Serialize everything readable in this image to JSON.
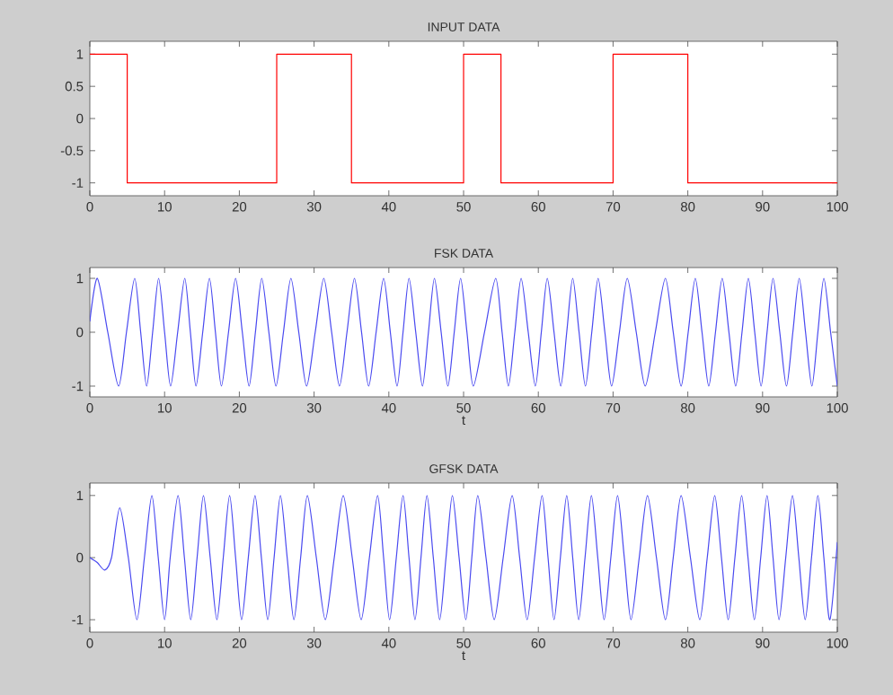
{
  "chart_data": [
    {
      "type": "step",
      "title": "INPUT DATA",
      "color": "#ff0000",
      "x": [
        0,
        5,
        25,
        35,
        50,
        55,
        70,
        80,
        100
      ],
      "values": [
        1,
        -1,
        1,
        -1,
        1,
        -1,
        1,
        -1,
        -1
      ],
      "xlim": [
        0,
        100
      ],
      "xticks": [
        0,
        10,
        20,
        30,
        40,
        50,
        60,
        70,
        80,
        90,
        100
      ],
      "ylim": [
        -1.2,
        1.2
      ],
      "yticks": [
        -1,
        -0.5,
        0,
        0.5,
        1
      ]
    },
    {
      "type": "line",
      "title": "FSK DATA",
      "xlabel": "t",
      "color": "#4a4af0",
      "x": [
        0,
        1.0,
        2.4,
        3.85,
        4.9,
        6.0,
        6.8,
        7.6,
        8.4,
        9.2,
        10.0,
        10.8,
        11.75,
        12.7,
        13.45,
        14.2,
        15.1,
        16.0,
        16.8,
        17.6,
        18.55,
        19.5,
        20.4,
        21.3,
        22.15,
        23.0,
        23.95,
        24.9,
        25.9,
        26.9,
        27.95,
        29.0,
        30.15,
        31.3,
        32.35,
        33.4,
        34.4,
        35.4,
        36.35,
        37.3,
        38.3,
        39.3,
        40.2,
        41.1,
        41.9,
        42.7,
        43.6,
        44.5,
        45.3,
        46.1,
        47.0,
        47.9,
        48.75,
        49.6,
        50.45,
        51.3,
        52.8,
        54.3,
        55.15,
        56.0,
        56.85,
        57.7,
        58.65,
        59.6,
        60.4,
        61.2,
        62.1,
        63.0,
        63.8,
        64.6,
        65.45,
        66.3,
        67.15,
        68.0,
        68.9,
        69.8,
        70.85,
        71.9,
        73.1,
        74.3,
        75.65,
        77.0,
        78.05,
        79.1,
        80.05,
        81.0,
        81.9,
        82.8,
        83.7,
        84.6,
        85.5,
        86.4,
        87.25,
        88.1,
        88.95,
        89.8,
        90.6,
        91.4,
        92.3,
        93.2,
        94.05,
        94.9,
        95.75,
        96.6,
        97.4,
        98.2,
        99.1,
        100
      ],
      "values": [
        0.2,
        1,
        0,
        -1,
        0,
        1,
        0,
        -1,
        0,
        1,
        0,
        -1,
        0,
        1,
        0,
        -1,
        0,
        1,
        0,
        -1,
        0,
        1,
        0,
        -1,
        0,
        1,
        0,
        -1,
        0,
        1,
        0,
        -1,
        0,
        1,
        0,
        -1,
        0,
        1,
        0,
        -1,
        0,
        1,
        0,
        -1,
        0,
        1,
        0,
        -1,
        0,
        1,
        0,
        -1,
        0,
        1,
        0,
        -1,
        0,
        1,
        0,
        -1,
        0,
        1,
        0,
        -1,
        0,
        1,
        0,
        -1,
        0,
        1,
        0,
        -1,
        0,
        1,
        0,
        -1,
        0,
        1,
        0,
        -1,
        0,
        1,
        0,
        -1,
        0,
        1,
        0,
        -1,
        0,
        1,
        0,
        -1,
        0,
        1,
        0,
        -1,
        0,
        1,
        0,
        -1,
        0,
        1,
        0,
        -1,
        0,
        1,
        0,
        -1
      ],
      "xlim": [
        0,
        100
      ],
      "xticks": [
        0,
        10,
        20,
        30,
        40,
        50,
        60,
        70,
        80,
        90,
        100
      ],
      "ylim": [
        -1.2,
        1.2
      ],
      "yticks": [
        -1,
        0,
        1
      ]
    },
    {
      "type": "line",
      "title": "GFSK DATA",
      "xlabel": "t",
      "color": "#4a4af0",
      "x": [
        0,
        1.0,
        2.0,
        2.9,
        4.0,
        5.15,
        6.3,
        7.3,
        8.3,
        9.15,
        10.0,
        10.75,
        11.8,
        12.65,
        13.5,
        14.35,
        15.2,
        16.1,
        17.0,
        17.85,
        18.7,
        19.5,
        20.3,
        21.2,
        22.1,
        22.95,
        23.8,
        24.65,
        25.5,
        26.4,
        27.3,
        28.2,
        29.1,
        30.3,
        31.5,
        32.7,
        33.9,
        35.1,
        36.3,
        37.4,
        38.5,
        39.3,
        40.1,
        41.0,
        41.9,
        42.7,
        43.5,
        44.3,
        45.1,
        45.95,
        46.8,
        47.65,
        48.5,
        49.4,
        50.3,
        51.1,
        51.9,
        53.0,
        54.1,
        55.3,
        56.5,
        57.5,
        58.5,
        59.5,
        60.5,
        61.3,
        62.1,
        62.95,
        63.8,
        64.6,
        65.4,
        66.25,
        67.1,
        67.95,
        68.8,
        69.7,
        70.6,
        71.5,
        72.4,
        73.5,
        74.6,
        75.8,
        77.0,
        78.05,
        79.1,
        80.35,
        81.6,
        82.6,
        83.6,
        84.5,
        85.4,
        86.3,
        87.2,
        88.05,
        88.9,
        89.75,
        90.6,
        91.4,
        92.2,
        93.1,
        94.0,
        94.85,
        95.7,
        96.55,
        97.4,
        98.2,
        99.0,
        100
      ],
      "values": [
        0,
        -0.08,
        -0.2,
        0,
        0.8,
        0,
        -1,
        0,
        1,
        0,
        -1,
        0,
        1,
        0,
        -1,
        0,
        1,
        0,
        -1,
        0,
        1,
        0,
        -1,
        0,
        1,
        0,
        -1,
        0,
        1,
        0,
        -1,
        0,
        1,
        0,
        -1,
        0,
        1,
        0,
        -1,
        0,
        1,
        0,
        -1,
        0,
        1,
        0,
        -1,
        0,
        1,
        0,
        -1,
        0,
        1,
        0,
        -1,
        0,
        1,
        0,
        -1,
        0,
        1,
        0,
        -1,
        0,
        1,
        0,
        -1,
        0,
        1,
        0,
        -1,
        0,
        1,
        0,
        -1,
        0,
        1,
        0,
        -1,
        0,
        1,
        0,
        -1,
        0,
        1,
        0,
        -1,
        0,
        1,
        0,
        -1,
        0,
        1,
        0,
        -1,
        0,
        1,
        0,
        -1,
        0,
        1,
        0,
        -1,
        0,
        1,
        0,
        -1,
        0.25
      ],
      "xlim": [
        0,
        100
      ],
      "xticks": [
        0,
        10,
        20,
        30,
        40,
        50,
        60,
        70,
        80,
        90,
        100
      ],
      "ylim": [
        -1.2,
        1.2
      ],
      "yticks": [
        -1,
        0,
        1
      ]
    }
  ]
}
